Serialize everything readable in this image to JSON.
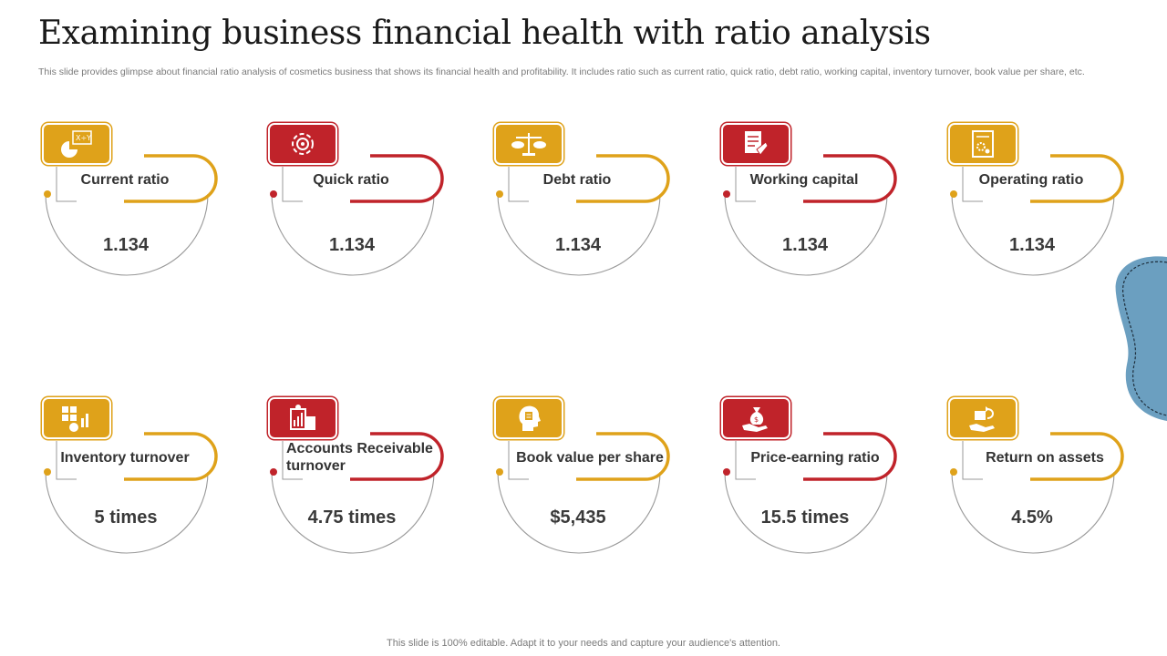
{
  "title": "Examining business financial health with ratio analysis",
  "subtitle": "This slide provides glimpse about financial ratio analysis of cosmetics business that shows its financial health and profitability. It includes ratio such as current ratio, quick ratio, debt ratio, working capital, inventory turnover, book value per share, etc.",
  "footer": "This slide is 100% editable. Adapt it to your needs and capture your audience's attention.",
  "colors": {
    "gold": "#dfa21a",
    "red": "#c0232a",
    "circle": "#9a9a9a",
    "blob": "#6b9fc0"
  },
  "ratios": [
    {
      "label": "Current ratio",
      "value": "1.134",
      "icon": "chart-formula-icon",
      "color": "gold"
    },
    {
      "label": "Quick ratio",
      "value": "1.134",
      "icon": "gear-cycle-icon",
      "color": "red"
    },
    {
      "label": "Debt ratio",
      "value": "1.134",
      "icon": "balance-scale-icon",
      "color": "gold"
    },
    {
      "label": "Working capital",
      "value": "1.134",
      "icon": "document-hand-icon",
      "color": "red"
    },
    {
      "label": "Operating ratio",
      "value": "1.134",
      "icon": "settings-document-icon",
      "color": "gold"
    },
    {
      "label": "Inventory turnover",
      "value": "5 times",
      "icon": "inventory-chart-icon",
      "color": "gold"
    },
    {
      "label": "Accounts Receivable turnover",
      "value": "4.75 times",
      "icon": "receipt-calculator-icon",
      "color": "red"
    },
    {
      "label": "Book value per share",
      "value": "$5,435",
      "icon": "head-document-icon",
      "color": "gold"
    },
    {
      "label": "Price-earning ratio",
      "value": "15.5 times",
      "icon": "money-bag-hand-icon",
      "color": "red"
    },
    {
      "label": "Return on assets",
      "value": "4.5%",
      "icon": "return-asset-icon",
      "color": "gold"
    }
  ]
}
